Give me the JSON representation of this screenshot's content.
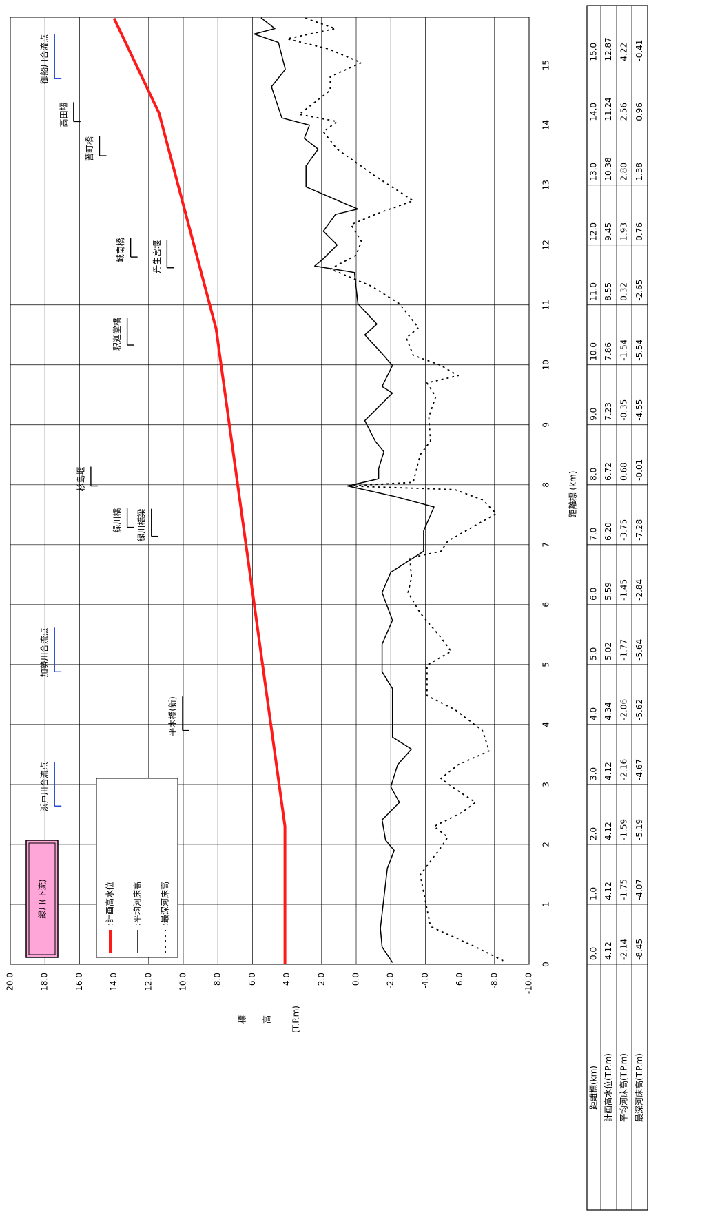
{
  "chart_data": {
    "type": "line",
    "title": "緑川(下流)",
    "y_label": [
      "標",
      "高",
      "(T.P.m)"
    ],
    "x_label": "距離標 (km)",
    "xlim": [
      0,
      15.8
    ],
    "ylim": [
      -10,
      20
    ],
    "grid": true,
    "xticks": [
      0,
      1,
      2,
      3,
      4,
      5,
      6,
      7,
      8,
      9,
      10,
      11,
      12,
      13,
      14,
      15
    ],
    "yticks": [
      {
        "value": -10,
        "label": "-10.0"
      },
      {
        "value": -8,
        "label": "-8.0"
      },
      {
        "value": -6,
        "label": "-6.0"
      },
      {
        "value": -4,
        "label": "-4.0"
      },
      {
        "value": -2,
        "label": "-2.0"
      },
      {
        "value": 0,
        "label": "0.0"
      },
      {
        "value": 2,
        "label": "2.0"
      },
      {
        "value": 4,
        "label": "4.0"
      },
      {
        "value": 6,
        "label": "6.0"
      },
      {
        "value": 8,
        "label": "8.0"
      },
      {
        "value": 10,
        "label": "10.0"
      },
      {
        "value": 12,
        "label": "12.0"
      },
      {
        "value": 14,
        "label": "14.0"
      },
      {
        "value": 16,
        "label": "16.0"
      },
      {
        "value": 18,
        "label": "18.0"
      },
      {
        "value": 20,
        "label": "20.0"
      }
    ],
    "series": [
      {
        "name": ":計画高水位",
        "color": "#ff1a1a",
        "line_style": "thick",
        "x": [
          0,
          2.3,
          10.6,
          14.2,
          15.78
        ],
        "values": [
          4.12,
          4.12,
          8.1,
          11.4,
          14.0
        ]
      },
      {
        "name": ":平均河床高",
        "color": "#000000",
        "line_style": "solid",
        "x": [
          0.03,
          0.29,
          0.6,
          1.6,
          1.9,
          2.07,
          2.41,
          2.7,
          2.96,
          3.33,
          3.59,
          3.79,
          4.6,
          4.88,
          5.34,
          5.74,
          6.2,
          6.54,
          6.89,
          7.23,
          7.63,
          7.8,
          7.98,
          8.1,
          8.27,
          8.55,
          8.73,
          9.07,
          9.53,
          9.64,
          9.99,
          10.22,
          10.5,
          10.68,
          11.02,
          11.54,
          11.65,
          11.77,
          12.0,
          12.23,
          12.51,
          12.6,
          12.97,
          13.32,
          13.6,
          13.78,
          14.0,
          14.12,
          14.64,
          14.93,
          15.38,
          15.52,
          15.61,
          15.79
        ],
        "values": [
          -2.1,
          -1.5,
          -1.4,
          -1.8,
          -2.2,
          -1.7,
          -1.5,
          -2.5,
          -2.0,
          -2.4,
          -3.2,
          -2.1,
          -2.1,
          -1.5,
          -1.5,
          -2.1,
          -1.5,
          -2.0,
          -3.9,
          -3.9,
          -4.5,
          -2.3,
          0.5,
          -1.3,
          -1.3,
          -1.6,
          -1.1,
          -0.5,
          -2.1,
          -1.5,
          -2.1,
          -1.4,
          -0.5,
          -1.2,
          -0.1,
          0.1,
          2.4,
          1.9,
          1.1,
          1.9,
          1.2,
          -0.1,
          2.9,
          2.9,
          2.2,
          3.0,
          2.7,
          4.3,
          4.9,
          4.1,
          4.5,
          5.9,
          4.7,
          5.5
        ]
      },
      {
        "name": ":最深河床高",
        "color": "#000000",
        "line_style": "dotted",
        "x": [
          0.06,
          0.29,
          0.63,
          1.49,
          1.95,
          2.12,
          2.3,
          2.53,
          2.7,
          2.93,
          3.1,
          3.33,
          3.56,
          3.9,
          4.25,
          4.48,
          4.99,
          5.22,
          5.45,
          5.86,
          6.2,
          6.45,
          6.78,
          6.89,
          7.06,
          7.52,
          7.75,
          7.92,
          7.98,
          8.04,
          8.5,
          8.73,
          9.13,
          9.47,
          9.7,
          9.82,
          9.99,
          10.16,
          10.45,
          10.62,
          11.02,
          11.31,
          11.6,
          11.83,
          12.06,
          12.34,
          12.51,
          12.74,
          13.15,
          13.6,
          13.89,
          14.06,
          14.18,
          14.58,
          14.81,
          15.04,
          15.27,
          15.44,
          15.61,
          15.79
        ],
        "values": [
          -8.5,
          -6.9,
          -4.3,
          -3.7,
          -4.9,
          -5.3,
          -4.5,
          -6.1,
          -6.9,
          -5.7,
          -4.9,
          -5.9,
          -7.7,
          -7.3,
          -5.7,
          -4.1,
          -4.1,
          -5.5,
          -4.9,
          -3.7,
          -3.0,
          -3.2,
          -3.1,
          -4.9,
          -5.3,
          -8.1,
          -7.3,
          -5.7,
          0.5,
          -3.3,
          -3.7,
          -4.3,
          -4.2,
          -4.6,
          -4.1,
          -5.9,
          -4.9,
          -3.3,
          -2.9,
          -3.6,
          -2.5,
          -0.9,
          1.5,
          0.0,
          -0.3,
          0.3,
          -1.1,
          -3.3,
          -1.1,
          1.1,
          1.9,
          1.1,
          3.3,
          1.5,
          1.5,
          -0.3,
          1.6,
          4.0,
          1.2,
          3.0
        ]
      }
    ],
    "annotations": [
      {
        "text": "浜戸川合流点",
        "x": 2.64,
        "y": 18.0,
        "color": "#1a3fd6"
      },
      {
        "text": "加勢川合流点",
        "x": 4.88,
        "y": 18.0,
        "color": "#1a3fd6"
      },
      {
        "text": "御船川合流点",
        "x": 14.78,
        "y": 18.0,
        "color": "#1a3fd6"
      },
      {
        "text": "高田堰",
        "x": 14.06,
        "y": 16.9,
        "color": "#000000"
      },
      {
        "text": "蓍町橋",
        "x": 13.49,
        "y": 15.4,
        "color": "#000000"
      },
      {
        "text": "杉島堰",
        "x": 7.98,
        "y": 15.9,
        "color": "#000000"
      },
      {
        "text": "緑川橋",
        "x": 7.29,
        "y": 13.8,
        "color": "#000000"
      },
      {
        "text": "緑川橋梁",
        "x": 7.14,
        "y": 12.4,
        "color": "#000000"
      },
      {
        "text": "平木橋(新)",
        "x": 3.9,
        "y": 10.6,
        "color": "#000000"
      },
      {
        "text": "釈迦堂橋",
        "x": 10.33,
        "y": 13.8,
        "color": "#000000"
      },
      {
        "text": "城南橋",
        "x": 11.8,
        "y": 13.6,
        "color": "#000000"
      },
      {
        "text": "丹生宮堰",
        "x": 11.62,
        "y": 11.5,
        "color": "#000000"
      }
    ]
  },
  "table": {
    "rows": [
      {
        "label": "距離標(km)",
        "cells": [
          "0.0",
          "1.0",
          "2.0",
          "3.0",
          "4.0",
          "5.0",
          "6.0",
          "7.0",
          "8.0",
          "9.0",
          "10.0",
          "11.0",
          "12.0",
          "13.0",
          "14.0",
          "15.0"
        ]
      },
      {
        "label": "計画高水位(T.P.m)",
        "cells": [
          "4.12",
          "4.12",
          "4.12",
          "4.12",
          "4.34",
          "5.02",
          "5.59",
          "6.20",
          "6.72",
          "7.23",
          "7.86",
          "8.55",
          "9.45",
          "10.38",
          "11.24",
          "12.87"
        ]
      },
      {
        "label": "平均河床高(T.P.m)",
        "cells": [
          "-2.14",
          "-1.75",
          "-1.59",
          "-2.16",
          "-2.06",
          "-1.77",
          "-1.45",
          "-3.75",
          "0.68",
          "-0.35",
          "-1.54",
          "0.32",
          "1.93",
          "2.80",
          "2.56",
          "4.22"
        ]
      },
      {
        "label": "最深河床高(T.P.m)",
        "cells": [
          "-8.45",
          "-4.07",
          "-5.19",
          "-4.67",
          "-5.62",
          "-5.64",
          "-2.84",
          "-7.28",
          "-0.01",
          "-4.55",
          "-5.54",
          "-2.65",
          "0.76",
          "1.38",
          "0.96",
          "-0.41"
        ]
      }
    ]
  }
}
